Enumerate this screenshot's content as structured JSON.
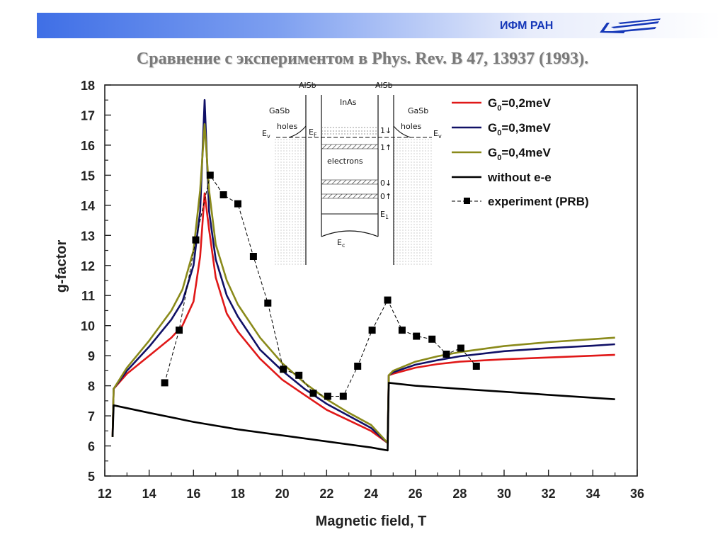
{
  "header": {
    "org_name": "ИФМ РАН",
    "logo_icon": "ifm-ran-logo-icon",
    "slide_title": "Сравнение с экспериментом в Phys. Rev. B 47, 13937 (1993)."
  },
  "chart_data": {
    "type": "line",
    "title": "",
    "xlabel": "Magnetic field, T",
    "ylabel": "g-factor",
    "xlim": [
      12,
      36
    ],
    "ylim": [
      5,
      18
    ],
    "xticks": [
      "12",
      "14",
      "16",
      "18",
      "20",
      "22",
      "24",
      "26",
      "28",
      "30",
      "32",
      "34",
      "36"
    ],
    "yticks": [
      "5",
      "6",
      "7",
      "8",
      "9",
      "10",
      "11",
      "12",
      "13",
      "14",
      "15",
      "16",
      "17",
      "18"
    ],
    "grid": false,
    "legend_position": "top-right",
    "series": [
      {
        "name": "G0=0,2meV",
        "legend_main": "G",
        "legend_sub": "0",
        "legend_tail": "=0,2meV",
        "color": "#e01818",
        "x": [
          12.35,
          12.4,
          13,
          14,
          15,
          15.5,
          16,
          16.3,
          16.5,
          16.7,
          17,
          17.5,
          18,
          19,
          20,
          21,
          22,
          23,
          24,
          24.75,
          24.8,
          25,
          26,
          27,
          28,
          30,
          32,
          34,
          35
        ],
        "y": [
          6.3,
          7.9,
          8.4,
          9.0,
          9.6,
          10.0,
          10.8,
          12.3,
          14.4,
          13.2,
          11.6,
          10.4,
          9.8,
          8.9,
          8.2,
          7.7,
          7.2,
          6.85,
          6.5,
          6.1,
          8.35,
          8.4,
          8.6,
          8.72,
          8.8,
          8.88,
          8.94,
          9.0,
          9.03
        ]
      },
      {
        "name": "G0=0,3meV",
        "legend_main": "G",
        "legend_sub": "0",
        "legend_tail": "=0,3meV",
        "color": "#101066",
        "x": [
          12.35,
          12.4,
          13,
          14,
          15,
          15.5,
          16,
          16.3,
          16.5,
          16.7,
          17,
          17.5,
          18,
          19,
          20,
          21,
          22,
          23,
          24,
          24.75,
          24.8,
          25,
          26,
          27,
          28,
          30,
          32,
          34,
          35
        ],
        "y": [
          6.3,
          7.9,
          8.5,
          9.3,
          10.2,
          10.8,
          12.0,
          13.8,
          17.5,
          13.8,
          12.2,
          11.0,
          10.3,
          9.2,
          8.5,
          7.9,
          7.4,
          7.0,
          6.6,
          6.1,
          8.35,
          8.45,
          8.7,
          8.85,
          8.98,
          9.15,
          9.25,
          9.33,
          9.38
        ]
      },
      {
        "name": "G0=0,4meV",
        "legend_main": "G",
        "legend_sub": "0",
        "legend_tail": "=0,4meV",
        "color": "#8a8a1a",
        "x": [
          12.35,
          12.4,
          13,
          14,
          15,
          15.5,
          16,
          16.3,
          16.5,
          16.7,
          17,
          17.5,
          18,
          19,
          20,
          21,
          22,
          23,
          24,
          24.75,
          24.8,
          25,
          26,
          27,
          28,
          30,
          32,
          34,
          35
        ],
        "y": [
          6.3,
          7.9,
          8.6,
          9.5,
          10.5,
          11.2,
          12.5,
          14.5,
          16.7,
          14.5,
          12.7,
          11.5,
          10.7,
          9.6,
          8.75,
          8.1,
          7.55,
          7.1,
          6.7,
          6.1,
          8.35,
          8.5,
          8.8,
          8.98,
          9.12,
          9.32,
          9.45,
          9.55,
          9.6
        ]
      },
      {
        "name": "without e-e",
        "color": "#000000",
        "x": [
          12.35,
          12.4,
          14,
          16,
          18,
          20,
          22,
          24,
          24.75,
          24.8,
          26,
          28,
          30,
          32,
          34,
          35
        ],
        "y": [
          6.3,
          7.35,
          7.1,
          6.8,
          6.55,
          6.35,
          6.15,
          5.95,
          5.85,
          8.1,
          8.0,
          7.9,
          7.8,
          7.7,
          7.6,
          7.55
        ]
      },
      {
        "name": "experiment (PRB)",
        "color": "#000000",
        "marker": "square",
        "x": [
          14.7,
          15.35,
          16.1,
          16.75,
          17.35,
          18.0,
          18.7,
          19.35,
          20.05,
          20.75,
          21.4,
          22.05,
          22.75,
          23.4,
          24.05,
          24.75,
          25.4,
          26.05,
          26.75,
          27.4,
          28.05,
          28.75
        ],
        "y": [
          8.1,
          9.85,
          12.85,
          15.0,
          14.35,
          14.05,
          12.3,
          10.75,
          8.55,
          8.35,
          7.75,
          7.65,
          7.65,
          8.65,
          9.85,
          10.85,
          9.85,
          9.65,
          9.55,
          9.05,
          9.25,
          8.65
        ]
      }
    ],
    "inset": {
      "labels": {
        "alsb_left": "AlSb",
        "inas": "InAs",
        "alsb_right": "AlSb",
        "gasb_left": "GaSb",
        "gasb_right": "GaSb",
        "holes_left": "holes",
        "holes_right": "holes",
        "ev_left": "E",
        "ev_left_sub": "v",
        "ef": "E",
        "ef_sub": "F",
        "ev_right": "E",
        "ev_right_sub": "v",
        "level_1down": "1↓",
        "level_1up": "1↑",
        "electrons": "electrons",
        "level_0down": "0↓",
        "level_0up": "0↑",
        "e1": "E",
        "e1_sub": "1",
        "ec": "E",
        "ec_sub": "c"
      }
    }
  }
}
